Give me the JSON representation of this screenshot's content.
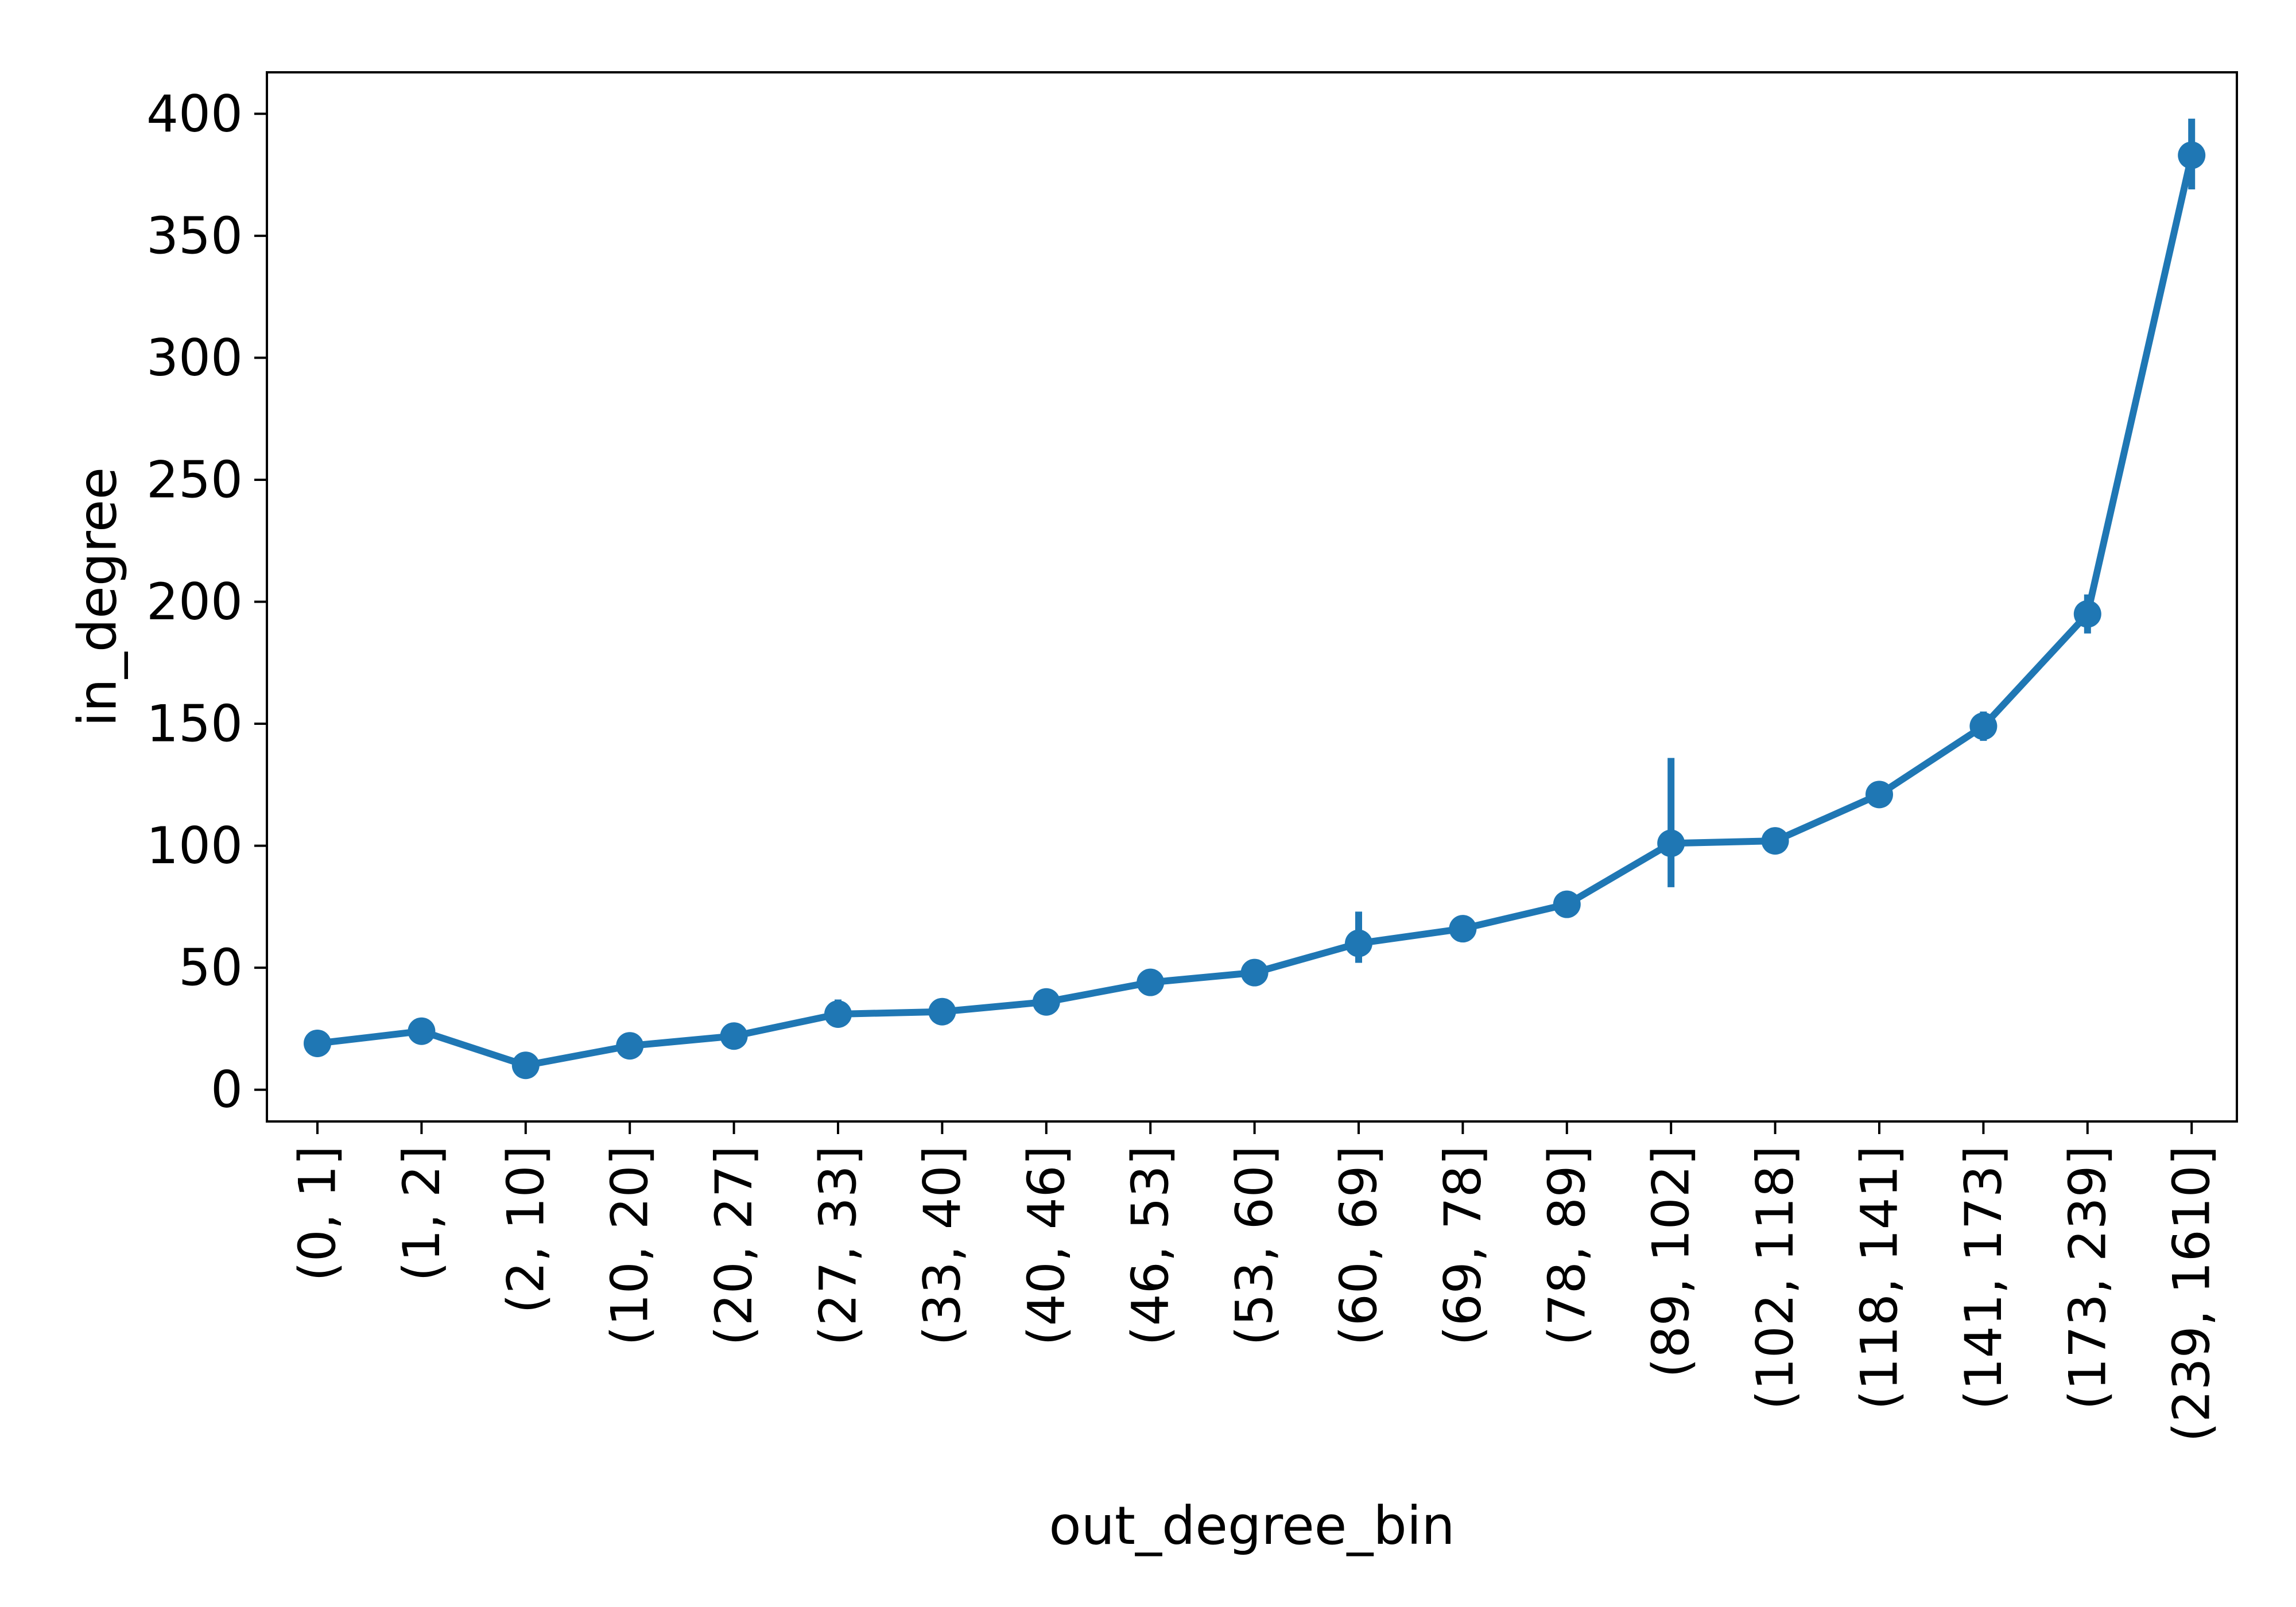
{
  "chart_data": {
    "type": "line",
    "title": "",
    "xlabel": "out_degree_bin",
    "ylabel": "in_degree",
    "categories": [
      "(0, 1]",
      "(1, 2]",
      "(2, 10]",
      "(10, 20]",
      "(20, 27]",
      "(27, 33]",
      "(33, 40]",
      "(40, 46]",
      "(46, 53]",
      "(53, 60]",
      "(60, 69]",
      "(69, 78]",
      "(78, 89]",
      "(89, 102]",
      "(102, 118]",
      "(118, 141]",
      "(141, 173]",
      "(173, 239]",
      "(239, 1610]"
    ],
    "ylim": [
      -13,
      417
    ],
    "yticks": [
      0,
      50,
      100,
      150,
      200,
      250,
      300,
      350,
      400
    ],
    "grid": false,
    "legend": "none",
    "color": "#1f77b4",
    "series": [
      {
        "values": [
          19,
          24,
          10,
          18,
          22,
          31,
          32,
          36,
          44,
          48,
          60,
          66,
          76,
          101,
          102,
          121,
          149,
          195,
          383
        ],
        "ci_low": [
          18,
          20,
          8,
          16,
          20,
          27,
          30,
          34,
          42,
          46,
          52,
          63,
          73,
          83,
          98,
          117,
          143,
          187,
          369
        ],
        "ci_high": [
          21,
          29,
          12,
          20,
          24,
          37,
          34,
          38,
          46,
          50,
          73,
          69,
          79,
          136,
          106,
          125,
          155,
          203,
          398
        ]
      }
    ]
  }
}
